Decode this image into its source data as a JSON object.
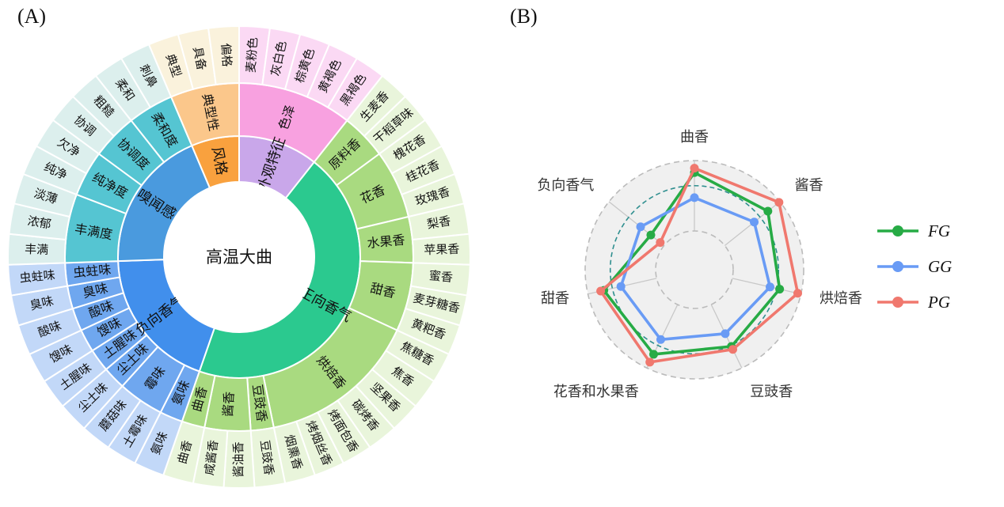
{
  "panels": {
    "a_label": "(A)",
    "b_label": "(B)"
  },
  "sunburst": {
    "center_label": "高温大曲",
    "groups": [
      {
        "name": "外观特征",
        "color": "#c9a7ea",
        "child_color": "#f8a1e0",
        "leaf_color": "#fbd9f4",
        "children": [
          {
            "name": "色泽",
            "leaves": [
              "麦粉色",
              "灰白色",
              "棕黄色",
              "黄褐色",
              "黑褐色"
            ]
          }
        ]
      },
      {
        "name": "正向香气",
        "color": "#2bc98f",
        "child_color": "#a9da80",
        "leaf_color": "#e9f5db",
        "children": [
          {
            "name": "原料香",
            "leaves": [
              "生麦香",
              "干稻草味"
            ]
          },
          {
            "name": "花香",
            "leaves": [
              "槐花香",
              "桂花香",
              "玫瑰香"
            ]
          },
          {
            "name": "水果香",
            "leaves": [
              "梨香",
              "苹果香"
            ]
          },
          {
            "name": "甜香",
            "leaves": [
              "蜜香",
              "麦芽糖香",
              "黄粑香"
            ]
          },
          {
            "name": "烘焙香",
            "leaves": [
              "焦糖香",
              "焦香",
              "坚果香",
              "碳烤香",
              "烤面包香",
              "烤烟丝香",
              "烟熏香"
            ]
          },
          {
            "name": "豆豉香",
            "leaves": [
              "豆豉香"
            ]
          },
          {
            "name": "酱香",
            "leaves": [
              "酱油香",
              "咸酱香"
            ]
          },
          {
            "name": "曲香",
            "leaves": [
              "曲香"
            ]
          }
        ]
      },
      {
        "name": "负向香气",
        "color": "#418fec",
        "child_color": "#6fa7ef",
        "leaf_color": "#c2d8f8",
        "children": [
          {
            "name": "氨味",
            "leaves": [
              "氨味"
            ]
          },
          {
            "name": "霉味",
            "leaves": [
              "土霉味",
              "蘑菇味"
            ]
          },
          {
            "name": "尘土味",
            "leaves": [
              "尘土味"
            ]
          },
          {
            "name": "土腥味",
            "leaves": [
              "土腥味"
            ]
          },
          {
            "name": "馊味",
            "leaves": [
              "馊味"
            ]
          },
          {
            "name": "酸味",
            "leaves": [
              "酸味"
            ]
          },
          {
            "name": "臭味",
            "leaves": [
              "臭味"
            ]
          },
          {
            "name": "虫蛀味",
            "leaves": [
              "虫蛀味"
            ]
          }
        ]
      },
      {
        "name": "嗅闻感",
        "color": "#4a9ade",
        "child_color": "#55c5d2",
        "leaf_color": "#dcefed",
        "children": [
          {
            "name": "丰满度",
            "leaves": [
              "丰满",
              "浓郁",
              "淡薄"
            ]
          },
          {
            "name": "纯净度",
            "leaves": [
              "纯净",
              "欠净"
            ]
          },
          {
            "name": "协调度",
            "leaves": [
              "协调",
              "粗糙"
            ]
          },
          {
            "name": "柔和度",
            "leaves": [
              "柔和",
              "刺鼻"
            ]
          }
        ]
      },
      {
        "name": "风格",
        "color": "#f9a13e",
        "child_color": "#fbc78b",
        "leaf_color": "#faf2dc",
        "children": [
          {
            "name": "典型性",
            "leaves": [
              "典型",
              "具备",
              "偏格"
            ]
          }
        ]
      }
    ]
  },
  "chart_data": {
    "type": "radar",
    "categories": [
      "曲香",
      "酱香",
      "烘焙香",
      "豆豉香",
      "花香和水果香",
      "甜香",
      "负向香气"
    ],
    "rmax": 1.0,
    "grid": {
      "rings": [
        0.355,
        1.0
      ],
      "ref_ring": 0.77,
      "ref_color": "#2f8f8f",
      "disk_color": "#f0f0f0",
      "ring_color": "#bbbbbb",
      "spoke_color": "#c8c8c8"
    },
    "series": [
      {
        "name": "FG",
        "color": "#27ab45",
        "values": [
          0.89,
          0.86,
          0.8,
          0.78,
          0.86,
          0.85,
          0.51
        ]
      },
      {
        "name": "GG",
        "color": "#699bf5",
        "values": [
          0.66,
          0.7,
          0.71,
          0.65,
          0.71,
          0.69,
          0.63
        ]
      },
      {
        "name": "PG",
        "color": "#f0786e",
        "values": [
          0.93,
          0.99,
          0.97,
          0.81,
          0.94,
          0.88,
          0.4
        ]
      }
    ],
    "legend_position": "right"
  }
}
